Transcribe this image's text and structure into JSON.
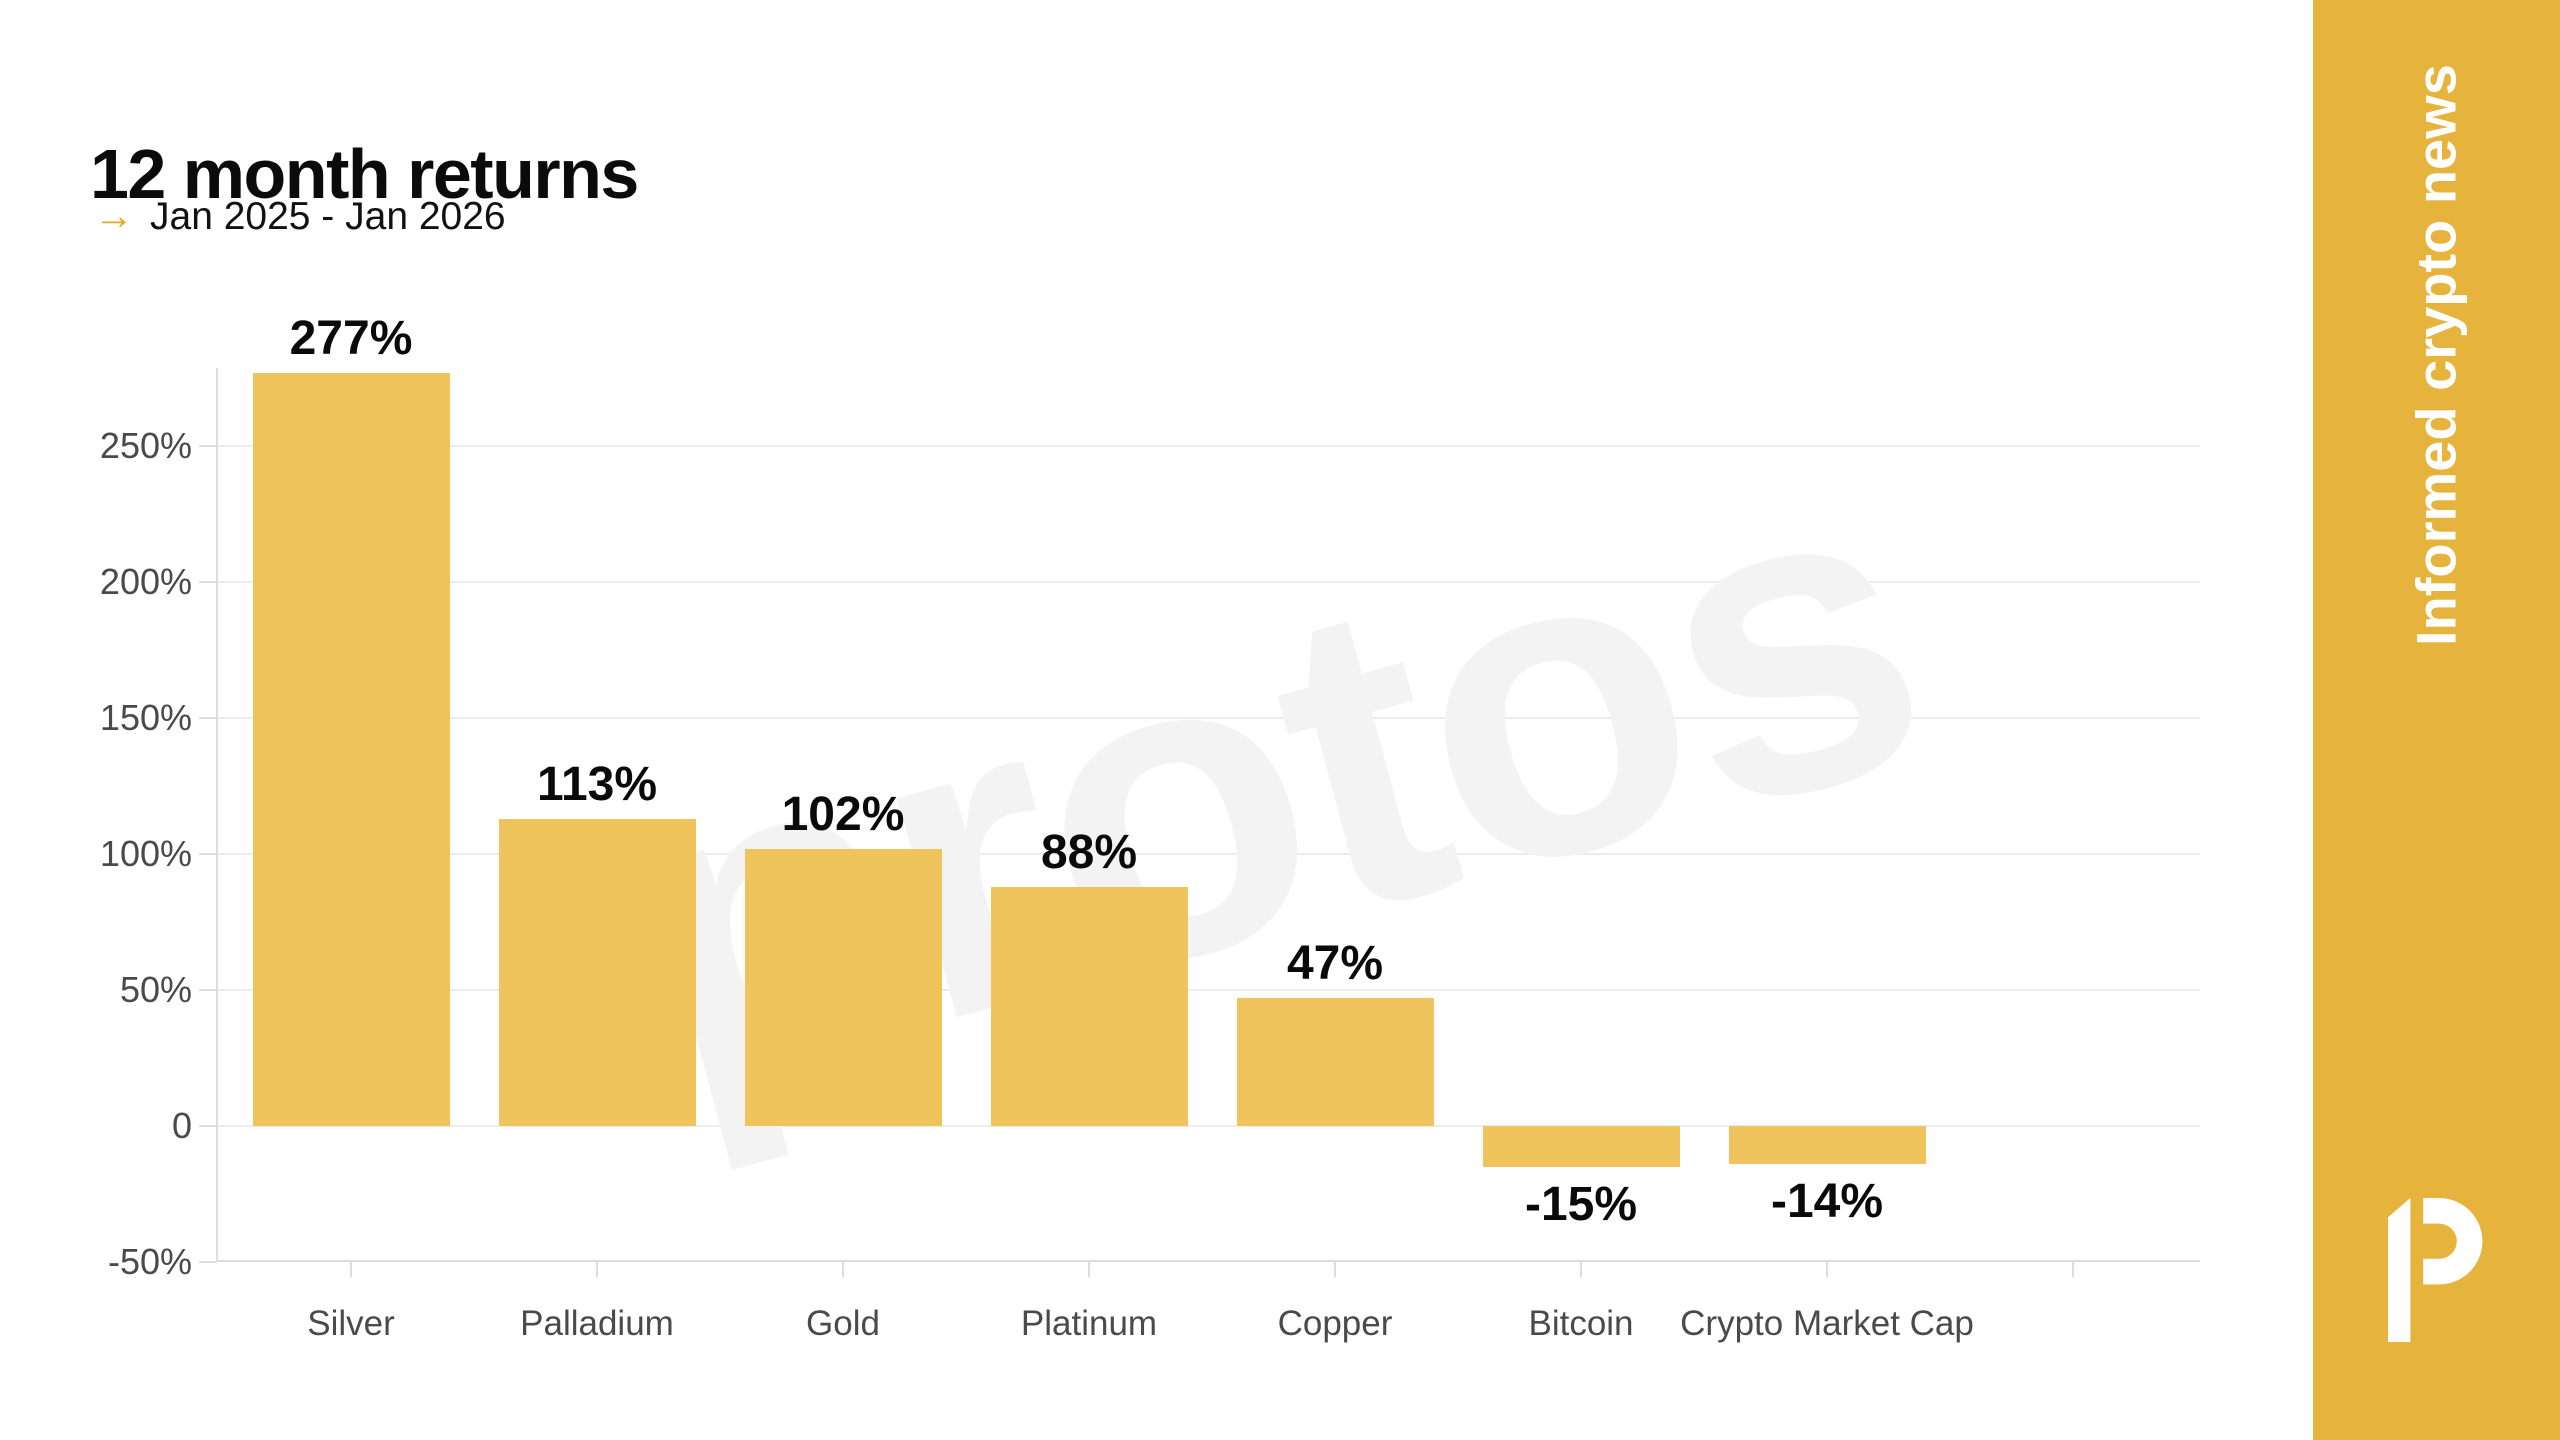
{
  "header": {
    "title": "12 month returns",
    "arrow": "→",
    "subtitle": "Jan 2025 - Jan 2026"
  },
  "watermark": {
    "text": "protos"
  },
  "sidebar": {
    "tagline": "Informed crypto news",
    "background": "#E6B33C",
    "text_color": "#FFFFFF"
  },
  "colors": {
    "background": "#FFFFFF",
    "bar": "#EFC45C",
    "accent_gold": "#E3A920",
    "title_text": "#0B0B0B",
    "axis_label": "#4A4A4A",
    "gridline": "#ECECEC",
    "axis_line": "#DDDDDD",
    "watermark": "#F3F3F3",
    "value_label": "#0A0A0A"
  },
  "chart_data": {
    "type": "bar",
    "title": "12 month returns",
    "subtitle": "Jan 2025 - Jan 2026",
    "categories": [
      "Silver",
      "Palladium",
      "Gold",
      "Platinum",
      "Copper",
      "Bitcoin",
      "Crypto Market Cap"
    ],
    "values": [
      277,
      113,
      102,
      88,
      47,
      -15,
      -14
    ],
    "value_labels": [
      "277%",
      "113%",
      "102%",
      "88%",
      "47%",
      "-15%",
      "-14%"
    ],
    "xlabel": "",
    "ylabel": "",
    "ylim": [
      -50,
      280
    ],
    "y_ticks": [
      {
        "label": "250%",
        "value": 250
      },
      {
        "label": "200%",
        "value": 200
      },
      {
        "label": "150%",
        "value": 150
      },
      {
        "label": "100%",
        "value": 100
      },
      {
        "label": "50%",
        "value": 50
      },
      {
        "label": "0",
        "value": 0
      },
      {
        "label": "-50%",
        "value": -50
      }
    ],
    "grid": "horizontal",
    "legend": "none",
    "bar_color": "#EFC45C"
  }
}
